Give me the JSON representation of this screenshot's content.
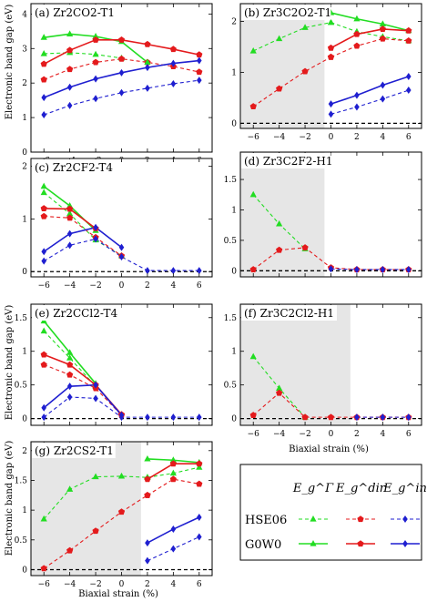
{
  "axis_labels": {
    "y": "Electronic band gap (eV)",
    "x": "Biaxial strain (%)"
  },
  "legend": {
    "columns": [
      "E_g^Γ",
      "E_g^dir",
      "E_g^in"
    ],
    "rows": [
      "HSE06",
      "G0W0"
    ]
  },
  "colors": {
    "gamma": "#22dd22",
    "dir": "#e41a1c",
    "in": "#1f1fd0",
    "shade": "#e6e6e6"
  },
  "chart_data": [
    {
      "type": "line",
      "title": "(a) Zr2CO2-T1",
      "xlim": [
        -7,
        7
      ],
      "ylim": [
        0,
        4.3
      ],
      "yticks": [
        0,
        1,
        2,
        3,
        4
      ],
      "xticks": [
        -6,
        -4,
        -2,
        0,
        2,
        4,
        6
      ],
      "shade": null,
      "series": [
        {
          "kind": "gamma",
          "method": "HSE06",
          "segments": [
            {
              "x": [
                -6,
                -4,
                -2,
                0
              ],
              "y": [
                2.85,
                2.88,
                2.83,
                2.72
              ]
            }
          ]
        },
        {
          "kind": "dir",
          "method": "HSE06",
          "segments": [
            {
              "x": [
                -6,
                -4,
                -2,
                0,
                2,
                4,
                6
              ],
              "y": [
                2.1,
                2.4,
                2.6,
                2.7,
                2.6,
                2.48,
                2.32
              ]
            }
          ]
        },
        {
          "kind": "in",
          "method": "HSE06",
          "segments": [
            {
              "x": [
                -6,
                -4,
                -2,
                0,
                2,
                4,
                6
              ],
              "y": [
                1.08,
                1.35,
                1.55,
                1.72,
                1.85,
                1.98,
                2.08
              ]
            }
          ]
        },
        {
          "kind": "gamma",
          "method": "G0W0",
          "segments": [
            {
              "x": [
                -6,
                -4,
                -2,
                0,
                2
              ],
              "y": [
                3.32,
                3.42,
                3.35,
                3.2,
                2.6
              ]
            }
          ]
        },
        {
          "kind": "dir",
          "method": "G0W0",
          "segments": [
            {
              "x": [
                -6,
                -4,
                -2,
                0,
                2,
                4,
                6
              ],
              "y": [
                2.55,
                2.95,
                3.25,
                3.25,
                3.12,
                2.98,
                2.82
              ]
            }
          ]
        },
        {
          "kind": "in",
          "method": "G0W0",
          "segments": [
            {
              "x": [
                -6,
                -4,
                -2,
                0,
                2,
                4,
                6
              ],
              "y": [
                1.58,
                1.88,
                2.12,
                2.3,
                2.45,
                2.57,
                2.65
              ]
            }
          ]
        }
      ]
    },
    {
      "type": "line",
      "title": "(b) Zr3C2O2-T1",
      "xlim": [
        -7,
        7
      ],
      "ylim": [
        -0.1,
        2.35
      ],
      "yticks": [
        0,
        1,
        2
      ],
      "xticks": [
        -6,
        -4,
        -2,
        0,
        2,
        4,
        6
      ],
      "shade": [
        -7,
        -0.5
      ],
      "series": [
        {
          "kind": "gamma",
          "method": "HSE06",
          "segments": [
            {
              "x": [
                -6,
                -4,
                -2,
                0
              ],
              "y": [
                1.42,
                1.66,
                1.88,
                1.98
              ]
            },
            {
              "x": [
                0,
                2,
                4,
                6
              ],
              "y": [
                1.98,
                1.8,
                1.7,
                1.62
              ]
            }
          ]
        },
        {
          "kind": "dir",
          "method": "HSE06",
          "segments": [
            {
              "x": [
                -6,
                -4,
                -2,
                0
              ],
              "y": [
                0.33,
                0.68,
                1.02,
                1.3
              ]
            },
            {
              "x": [
                0,
                2,
                4,
                6
              ],
              "y": [
                1.3,
                1.52,
                1.66,
                1.62
              ]
            }
          ]
        },
        {
          "kind": "in",
          "method": "HSE06",
          "segments": [
            {
              "x": [
                0,
                2,
                4,
                6
              ],
              "y": [
                0.18,
                0.32,
                0.48,
                0.65
              ]
            }
          ]
        },
        {
          "kind": "gamma",
          "method": "G0W0",
          "segments": [
            {
              "x": [
                0,
                2,
                4,
                6
              ],
              "y": [
                2.17,
                2.05,
                1.95,
                1.82
              ]
            }
          ]
        },
        {
          "kind": "dir",
          "method": "G0W0",
          "segments": [
            {
              "x": [
                0,
                2,
                4,
                6
              ],
              "y": [
                1.48,
                1.75,
                1.85,
                1.82
              ]
            }
          ]
        },
        {
          "kind": "in",
          "method": "G0W0",
          "segments": [
            {
              "x": [
                0,
                2,
                4,
                6
              ],
              "y": [
                0.38,
                0.55,
                0.75,
                0.92
              ]
            }
          ]
        }
      ]
    },
    {
      "type": "line",
      "title": "(c) Zr2CF2-T4",
      "xlim": [
        -7,
        7
      ],
      "ylim": [
        -0.1,
        2.15
      ],
      "yticks": [
        0,
        1,
        2
      ],
      "xticks": [
        -6,
        -4,
        -2,
        0,
        2,
        4,
        6
      ],
      "shade": null,
      "series": [
        {
          "kind": "gamma",
          "method": "HSE06",
          "segments": [
            {
              "x": [
                -6,
                -4,
                -2,
                0
              ],
              "y": [
                1.5,
                1.1,
                0.6,
                0.3
              ]
            }
          ]
        },
        {
          "kind": "dir",
          "method": "HSE06",
          "segments": [
            {
              "x": [
                -6,
                -4,
                -2,
                0
              ],
              "y": [
                1.05,
                1.02,
                0.65,
                0.3
              ]
            }
          ]
        },
        {
          "kind": "in",
          "method": "HSE06",
          "segments": [
            {
              "x": [
                -6,
                -4,
                -2,
                0,
                2,
                4,
                6
              ],
              "y": [
                0.2,
                0.5,
                0.62,
                0.28,
                0.02,
                0.02,
                0.02
              ]
            }
          ]
        },
        {
          "kind": "gamma",
          "method": "G0W0",
          "segments": [
            {
              "x": [
                -6,
                -4,
                -2
              ],
              "y": [
                1.62,
                1.25,
                0.78
              ]
            }
          ]
        },
        {
          "kind": "dir",
          "method": "G0W0",
          "segments": [
            {
              "x": [
                -6,
                -4,
                -2
              ],
              "y": [
                1.2,
                1.19,
                0.82
              ]
            }
          ]
        },
        {
          "kind": "in",
          "method": "G0W0",
          "segments": [
            {
              "x": [
                -6,
                -4,
                -2,
                0
              ],
              "y": [
                0.38,
                0.72,
                0.84,
                0.46
              ]
            }
          ]
        }
      ]
    },
    {
      "type": "line",
      "title": "(d) Zr3C2F2-H1",
      "xlim": [
        -7,
        7
      ],
      "ylim": [
        -0.1,
        1.95
      ],
      "yticks": [
        0,
        0.5,
        1,
        1.5
      ],
      "xticks": [
        -6,
        -4,
        -2,
        0,
        2,
        4,
        6
      ],
      "shade": [
        -7,
        -0.5
      ],
      "series": [
        {
          "kind": "gamma",
          "method": "HSE06",
          "segments": [
            {
              "x": [
                -6,
                -4,
                -2
              ],
              "y": [
                1.25,
                0.77,
                0.36
              ]
            }
          ]
        },
        {
          "kind": "dir",
          "method": "HSE06",
          "segments": [
            {
              "x": [
                -6,
                -4,
                -2,
                0,
                2,
                4,
                6
              ],
              "y": [
                0.02,
                0.34,
                0.38,
                0.05,
                0.02,
                0.02,
                0.02
              ]
            }
          ]
        },
        {
          "kind": "in",
          "method": "HSE06",
          "segments": [
            {
              "x": [
                0,
                2,
                4,
                6
              ],
              "y": [
                0.03,
                0.02,
                0.02,
                0.02
              ]
            }
          ]
        }
      ]
    },
    {
      "type": "line",
      "title": "(e) Zr2CCl2-T4",
      "xlim": [
        -7,
        7
      ],
      "ylim": [
        -0.1,
        1.7
      ],
      "yticks": [
        0,
        0.5,
        1,
        1.5
      ],
      "xticks": [
        -6,
        -4,
        -2,
        0,
        2,
        4,
        6
      ],
      "shade": null,
      "series": [
        {
          "kind": "gamma",
          "method": "HSE06",
          "segments": [
            {
              "x": [
                -6,
                -4,
                -2
              ],
              "y": [
                1.3,
                0.9,
                0.48
              ]
            }
          ]
        },
        {
          "kind": "dir",
          "method": "HSE06",
          "segments": [
            {
              "x": [
                -6,
                -4,
                -2,
                0
              ],
              "y": [
                0.8,
                0.65,
                0.45,
                0.05
              ]
            }
          ]
        },
        {
          "kind": "in",
          "method": "HSE06",
          "segments": [
            {
              "x": [
                -6,
                -4,
                -2,
                0,
                2,
                4,
                6
              ],
              "y": [
                0.02,
                0.32,
                0.3,
                0.02,
                0.02,
                0.02,
                0.02
              ]
            }
          ]
        },
        {
          "kind": "gamma",
          "method": "G0W0",
          "segments": [
            {
              "x": [
                -6,
                -4,
                -2
              ],
              "y": [
                1.45,
                0.98,
                0.52
              ]
            }
          ]
        },
        {
          "kind": "dir",
          "method": "G0W0",
          "segments": [
            {
              "x": [
                -6,
                -4,
                -2,
                0
              ],
              "y": [
                0.95,
                0.8,
                0.5,
                0.06
              ]
            }
          ]
        },
        {
          "kind": "in",
          "method": "G0W0",
          "segments": [
            {
              "x": [
                -6,
                -4,
                -2,
                0
              ],
              "y": [
                0.16,
                0.48,
                0.5,
                0.05
              ]
            }
          ]
        }
      ]
    },
    {
      "type": "line",
      "title": "(f) Zr3C2Cl2-H1",
      "xlim": [
        -7,
        7
      ],
      "ylim": [
        -0.1,
        1.7
      ],
      "yticks": [
        0,
        0.5,
        1,
        1.5
      ],
      "xticks": [
        -6,
        -4,
        -2,
        0,
        2,
        4,
        6
      ],
      "shade": [
        -7,
        1.5
      ],
      "series": [
        {
          "kind": "gamma",
          "method": "HSE06",
          "segments": [
            {
              "x": [
                -6,
                -4,
                -2
              ],
              "y": [
                0.92,
                0.45,
                0.02
              ]
            }
          ]
        },
        {
          "kind": "dir",
          "method": "HSE06",
          "segments": [
            {
              "x": [
                -6,
                -4,
                -2,
                0,
                2,
                4,
                6
              ],
              "y": [
                0.05,
                0.38,
                0.02,
                0.02,
                0.02,
                0.02,
                0.02
              ]
            }
          ]
        },
        {
          "kind": "in",
          "method": "HSE06",
          "segments": [
            {
              "x": [
                2,
                4,
                6
              ],
              "y": [
                0.02,
                0.02,
                0.02
              ]
            }
          ]
        }
      ]
    },
    {
      "type": "line",
      "title": "(g) Zr2CS2-T1",
      "xlim": [
        -7,
        7
      ],
      "ylim": [
        -0.1,
        2.15
      ],
      "yticks": [
        0,
        0.5,
        1,
        1.5,
        2
      ],
      "xticks": [
        -6,
        -4,
        -2,
        0,
        2,
        4,
        6
      ],
      "shade": [
        -7,
        1.5
      ],
      "series": [
        {
          "kind": "gamma",
          "method": "HSE06",
          "segments": [
            {
              "x": [
                -6,
                -4,
                -2,
                0,
                2
              ],
              "y": [
                0.85,
                1.35,
                1.56,
                1.57,
                1.55
              ]
            },
            {
              "x": [
                2,
                4,
                6
              ],
              "y": [
                1.55,
                1.62,
                1.72
              ]
            }
          ]
        },
        {
          "kind": "dir",
          "method": "HSE06",
          "segments": [
            {
              "x": [
                -6,
                -4,
                -2,
                0,
                2
              ],
              "y": [
                0.02,
                0.32,
                0.65,
                0.97,
                1.25
              ]
            },
            {
              "x": [
                2,
                4,
                6
              ],
              "y": [
                1.25,
                1.52,
                1.44
              ]
            }
          ]
        },
        {
          "kind": "in",
          "method": "HSE06",
          "segments": [
            {
              "x": [
                2,
                4,
                6
              ],
              "y": [
                0.15,
                0.35,
                0.55
              ]
            }
          ]
        },
        {
          "kind": "gamma",
          "method": "G0W0",
          "segments": [
            {
              "x": [
                2,
                4,
                6
              ],
              "y": [
                1.86,
                1.84,
                1.8
              ]
            }
          ]
        },
        {
          "kind": "dir",
          "method": "G0W0",
          "segments": [
            {
              "x": [
                2,
                4,
                6
              ],
              "y": [
                1.52,
                1.78,
                1.78
              ]
            }
          ]
        },
        {
          "kind": "in",
          "method": "G0W0",
          "segments": [
            {
              "x": [
                2,
                4,
                6
              ],
              "y": [
                0.45,
                0.68,
                0.88
              ]
            }
          ]
        }
      ]
    }
  ]
}
